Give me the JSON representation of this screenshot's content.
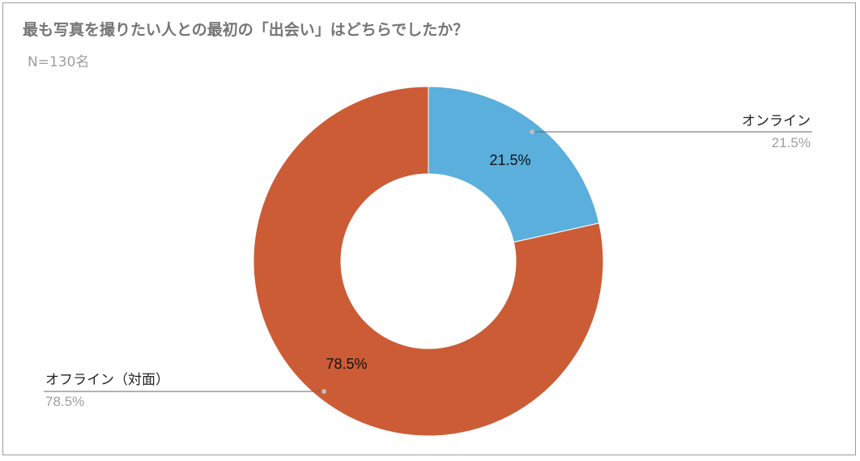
{
  "chart_data": {
    "type": "pie",
    "donut": true,
    "title": "最も写真を撮りたい人との最初の「出会い」はどちらでしたか？",
    "subtitle": "N=130名",
    "slices": [
      {
        "label": "オンライン",
        "value": 21.5,
        "display": "21.5%",
        "color": "#5aafdc"
      },
      {
        "label": "オフライン（対面）",
        "value": 78.5,
        "display": "78.5%",
        "color": "#cc5c36"
      }
    ],
    "legend": "callout-labels"
  }
}
